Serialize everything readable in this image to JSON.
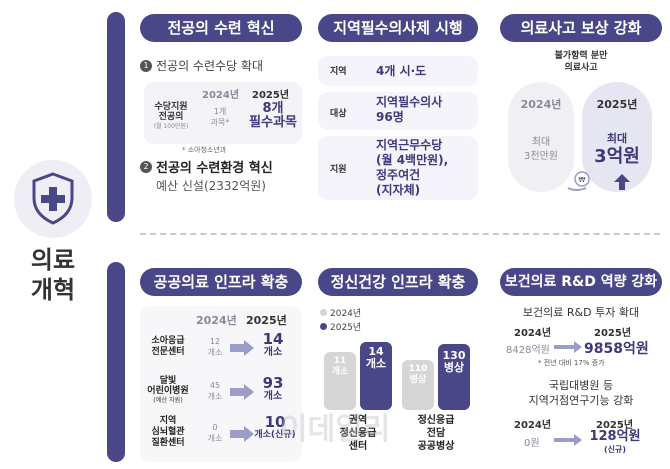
{
  "side": {
    "title_line1": "의료",
    "title_line2": "개혁"
  },
  "s1": {
    "title": "전공의 수련 혁신",
    "item1_num": "1",
    "item1_title": "전공의 수련수당 확대",
    "y2024": "2024년",
    "y2025": "2025년",
    "row_label_1": "수당지원",
    "row_label_2": "전공의",
    "row_label_3": "(월 100만원)",
    "v2024_a": "1개",
    "v2024_b": "과목*",
    "v2025_a": "8개",
    "v2025_b": "필수과목",
    "note": "* 소아청소년과",
    "item2_num": "2",
    "item2_title": "전공의 수련환경 혁신",
    "item2_sub": "예산 신설(2332억원)"
  },
  "s2": {
    "title": "지역필수의사제 시행",
    "r1_label": "지역",
    "r1_value": "4개 시·도",
    "r2_label": "대상",
    "r2_value_1": "지역필수의사",
    "r2_value_2": "96명",
    "r3_label": "지원",
    "r3_value_1": "지역근무수당",
    "r3_value_2": "(월 4백만원),",
    "r3_value_3": "정주여건",
    "r3_value_4": "(지자체)"
  },
  "s3": {
    "title": "의료사고 보상 강화",
    "caption_1": "불가항력 분만",
    "caption_2": "의료사고",
    "y2024": "2024년",
    "y2025": "2025년",
    "v2024_a": "최대",
    "v2024_b": "3천만원",
    "v2025_a": "최대",
    "v2025_b": "3억원"
  },
  "s4": {
    "title": "공공의료 인프라 확충",
    "y2024": "2024년",
    "y2025": "2025년",
    "rows": [
      {
        "l1": "소아응급",
        "l2": "전문센터",
        "l3": "",
        "a": "12",
        "au": "개소",
        "b": "14",
        "bu": "개소"
      },
      {
        "l1": "달빛",
        "l2": "어린이병원",
        "l3": "(예산 지원)",
        "a": "45",
        "au": "개소",
        "b": "93",
        "bu": "개소"
      },
      {
        "l1": "지역",
        "l2": "심뇌혈관",
        "l3": "질환센터",
        "a": "0",
        "au": "개소",
        "b": "10",
        "bu": "개소(신규)"
      }
    ]
  },
  "s5": {
    "title": "정신건강 인프라 확충",
    "legend_2024": "2024년",
    "legend_2025": "2025년",
    "g1_a": "11",
    "g1_a_u": "개소",
    "g1_b": "14",
    "g1_b_u": "개소",
    "g2_a": "110",
    "g2_a_u": "병상",
    "g2_b": "130",
    "g2_b_u": "병상",
    "g1_label_1": "권역",
    "g1_label_2": "정신응급",
    "g1_label_3": "센터",
    "g2_label_1": "정신응급",
    "g2_label_2": "전담",
    "g2_label_3": "공공병상"
  },
  "s6": {
    "title": "보건의료 R&D 역량 강화",
    "sub1": "보건의료 R&D 투자 확대",
    "y2024": "2024년",
    "y2025": "2025년",
    "v2024": "8428억원",
    "v2025": "9858억원",
    "note": "* 전년 대비 17% 증가",
    "sub2_1": "국립대병원 등",
    "sub2_2": "지역거점연구기능 강화",
    "v2024b": "0원",
    "v2025b": "128억원",
    "v2025b_note": "(신규)"
  },
  "watermark": "이데일리",
  "colors": {
    "navy": "#4a4788",
    "light_panel": "#f5f4fa",
    "arrow": "#9b9cc8",
    "gray_bar": "#d6d6d6"
  }
}
